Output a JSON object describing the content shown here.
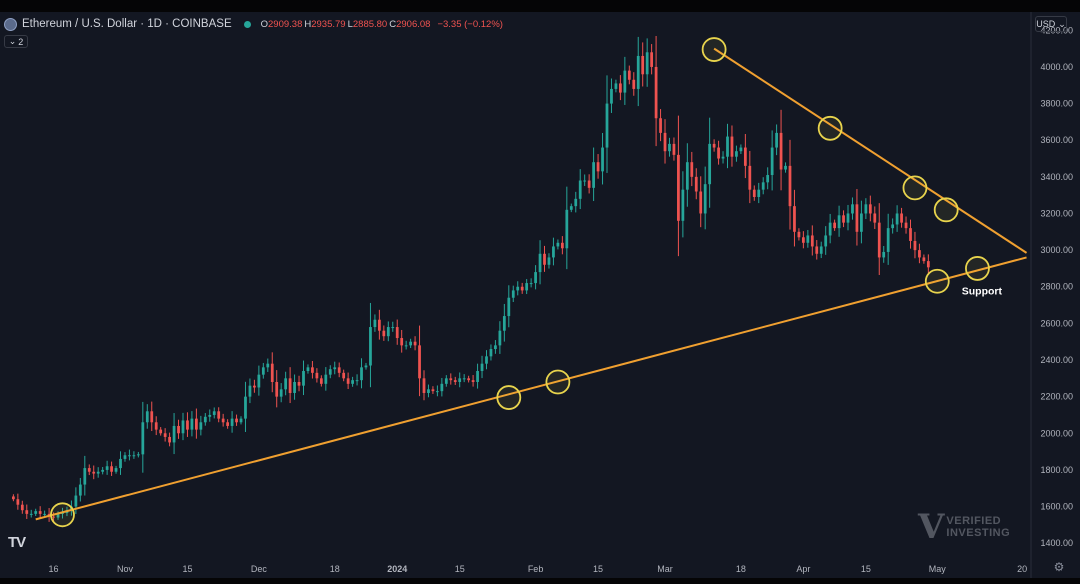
{
  "header": {
    "symbol": "Ethereum / U.S. Dollar · 1D · COINBASE",
    "ohlc": {
      "o_label": "O",
      "o": "2909.38",
      "h_label": "H",
      "h": "2935.79",
      "l_label": "L",
      "l": "2885.80",
      "c_label": "C",
      "c": "2906.08",
      "change": "−3.35 (−0.12%)"
    },
    "indicators_count": "2",
    "currency": "USD",
    "logo": "TV"
  },
  "colors": {
    "background": "#131722",
    "up": "#26a69a",
    "down": "#ef5350",
    "trendline": "#f0a030",
    "marker": "#e8d44d",
    "axis_text": "#b2b5be"
  },
  "watermark": {
    "mark": "V",
    "line1": "VERIFIED",
    "line2": "INVESTING"
  },
  "chart_data": {
    "type": "candlestick",
    "title": "Ethereum / U.S. Dollar · 1D · COINBASE",
    "ylim": [
      1330,
      4300
    ],
    "grid": false,
    "y_ticks": [
      1400,
      1600,
      1800,
      2000,
      2200,
      2400,
      2600,
      2800,
      3000,
      3200,
      3400,
      3600,
      3800,
      4000,
      4200
    ],
    "y_tick_labels": [
      "1400.00",
      "1600.00",
      "1800.00",
      "2000.00",
      "2200.00",
      "2400.00",
      "2600.00",
      "2800.00",
      "3000.00",
      "3200.00",
      "3400.00",
      "3600.00",
      "3800.00",
      "4000.00",
      "4200.00"
    ],
    "x_ticks": [
      {
        "label": "16",
        "date": "2023-10-16"
      },
      {
        "label": "Nov",
        "date": "2023-11-01"
      },
      {
        "label": "15",
        "date": "2023-11-15"
      },
      {
        "label": "Dec",
        "date": "2023-12-01"
      },
      {
        "label": "18",
        "date": "2023-12-18"
      },
      {
        "label": "2024",
        "date": "2024-01-01"
      },
      {
        "label": "15",
        "date": "2024-01-15"
      },
      {
        "label": "Feb",
        "date": "2024-02-01"
      },
      {
        "label": "15",
        "date": "2024-02-15"
      },
      {
        "label": "Mar",
        "date": "2024-03-01"
      },
      {
        "label": "18",
        "date": "2024-03-18"
      },
      {
        "label": "Apr",
        "date": "2024-04-01"
      },
      {
        "label": "15",
        "date": "2024-04-15"
      },
      {
        "label": "May",
        "date": "2024-05-01"
      },
      {
        "label": "20",
        "date": "2024-05-20"
      }
    ],
    "start_date": "2023-10-07",
    "close": [
      1640,
      1610,
      1580,
      1560,
      1560,
      1575,
      1560,
      1560,
      1545,
      1540,
      1560,
      1565,
      1580,
      1600,
      1660,
      1720,
      1810,
      1790,
      1780,
      1790,
      1800,
      1820,
      1790,
      1810,
      1860,
      1880,
      1880,
      1880,
      1885,
      2060,
      2120,
      2060,
      2020,
      2000,
      1980,
      1950,
      2040,
      2000,
      2070,
      2020,
      2080,
      2020,
      2060,
      2090,
      2100,
      2120,
      2080,
      2060,
      2040,
      2080,
      2060,
      2080,
      2200,
      2260,
      2250,
      2320,
      2360,
      2380,
      2280,
      2200,
      2240,
      2300,
      2220,
      2280,
      2260,
      2340,
      2360,
      2330,
      2300,
      2270,
      2320,
      2350,
      2360,
      2330,
      2300,
      2270,
      2290,
      2290,
      2360,
      2370,
      2580,
      2620,
      2560,
      2530,
      2580,
      2580,
      2520,
      2480,
      2480,
      2500,
      2480,
      2300,
      2220,
      2240,
      2230,
      2230,
      2270,
      2300,
      2290,
      2280,
      2300,
      2300,
      2290,
      2280,
      2340,
      2380,
      2420,
      2460,
      2480,
      2560,
      2640,
      2740,
      2780,
      2800,
      2780,
      2820,
      2820,
      2880,
      2980,
      2920,
      2960,
      3020,
      3040,
      3010,
      3220,
      3240,
      3280,
      3380,
      3380,
      3340,
      3480,
      3430,
      3560,
      3800,
      3880,
      3910,
      3860,
      3980,
      3930,
      3880,
      4060,
      3960,
      4080,
      4000,
      3720,
      3640,
      3540,
      3580,
      3520,
      3160,
      3330,
      3480,
      3400,
      3320,
      3200,
      3360,
      3580,
      3560,
      3500,
      3510,
      3620,
      3510,
      3540,
      3560,
      3460,
      3330,
      3290,
      3330,
      3370,
      3410,
      3560,
      3640,
      3440,
      3460,
      3240,
      3100,
      3070,
      3040,
      3080,
      3020,
      2980,
      3020,
      3080,
      3150,
      3120,
      3190,
      3150,
      3200,
      3250,
      3100,
      3200,
      3250,
      3200,
      3150,
      2960,
      2990,
      3120,
      3140,
      3200,
      3150,
      3120,
      3050,
      3000,
      2960,
      2940,
      2906
    ],
    "trendlines": [
      {
        "from": {
          "date": "2023-10-12",
          "price": 1530
        },
        "to": {
          "date": "2024-05-21",
          "price": 2960
        }
      },
      {
        "from": {
          "date": "2024-03-12",
          "price": 4100
        },
        "to": {
          "date": "2024-05-21",
          "price": 2985
        }
      }
    ],
    "markers": [
      {
        "date": "2023-10-18",
        "price": 1555,
        "kind": "support"
      },
      {
        "date": "2024-01-26",
        "price": 2195,
        "kind": "support"
      },
      {
        "date": "2024-02-06",
        "price": 2280,
        "kind": "support"
      },
      {
        "date": "2024-03-12",
        "price": 4095,
        "kind": "resistance"
      },
      {
        "date": "2024-04-07",
        "price": 3665,
        "kind": "resistance"
      },
      {
        "date": "2024-04-26",
        "price": 3340,
        "kind": "resistance"
      },
      {
        "date": "2024-05-03",
        "price": 3220,
        "kind": "resistance"
      },
      {
        "date": "2024-05-01",
        "price": 2830,
        "kind": "support"
      },
      {
        "date": "2024-05-10",
        "price": 2900,
        "kind": "support"
      }
    ],
    "annotation": {
      "text": "Support",
      "date": "2024-05-11",
      "price": 2780
    }
  }
}
